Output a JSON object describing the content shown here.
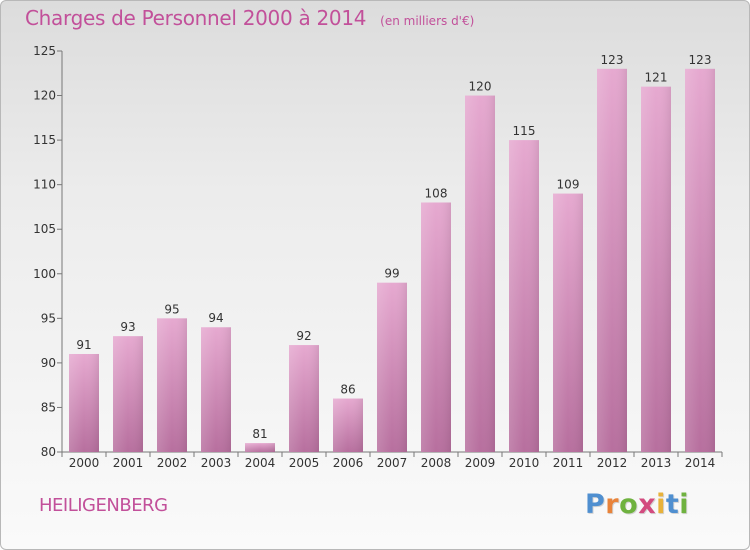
{
  "header": {
    "title": "Charges de Personnel 2000 à 2014",
    "unit": "(en milliers d'€)"
  },
  "footer": {
    "commune": "HEILIGENBERG",
    "logo": "Proxiti"
  },
  "colors": {
    "title": "#c2509a",
    "bar_light": "#e6a9d0",
    "bar_dark": "#b76f9e",
    "logo_letters": [
      "#4f8fd0",
      "#e8833a",
      "#6fb23f",
      "#d34b7f",
      "#e8b23a",
      "#4f8fd0",
      "#6fb23f"
    ]
  },
  "chart_data": {
    "type": "bar",
    "categories": [
      "2000",
      "2001",
      "2002",
      "2003",
      "2004",
      "2005",
      "2006",
      "2007",
      "2008",
      "2009",
      "2010",
      "2011",
      "2012",
      "2013",
      "2014"
    ],
    "values": [
      91,
      93,
      95,
      94,
      81,
      92,
      86,
      99,
      108,
      120,
      115,
      109,
      123,
      121,
      123
    ],
    "yticks": [
      80,
      85,
      90,
      95,
      100,
      105,
      110,
      115,
      120,
      125
    ],
    "ylim": [
      80,
      125
    ],
    "grid": false,
    "data_labels": true
  }
}
